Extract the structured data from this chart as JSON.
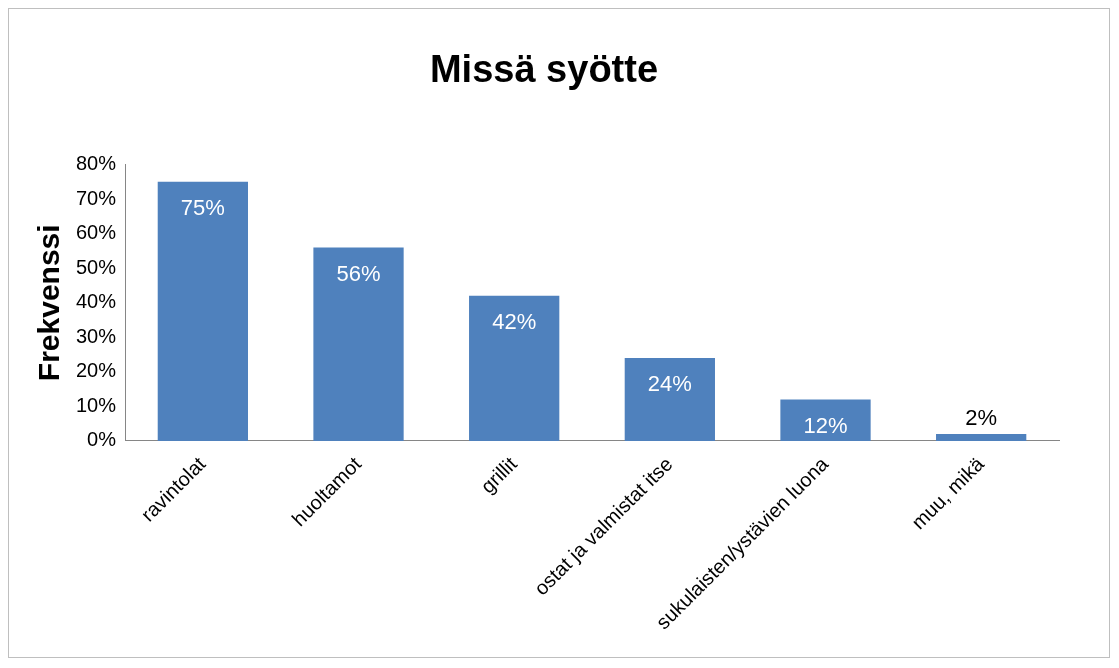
{
  "chart_data": {
    "type": "bar",
    "title": "Missä syötte",
    "ylabel": "Frekvenssi",
    "categories": [
      "ravintolat",
      "huoltamot",
      "grillit",
      "ostat ja valmistat itse",
      "sukulaisten/ystävien luona",
      "muu, mikä"
    ],
    "values": [
      75,
      56,
      42,
      24,
      12,
      2
    ],
    "color": "#4f81bd",
    "value_labels": [
      "75%",
      "56%",
      "42%",
      "24%",
      "12%",
      "2%"
    ],
    "ylim": [
      0,
      80
    ],
    "yticks": [
      {
        "value": 0,
        "label": "0%"
      },
      {
        "value": 10,
        "label": "10%"
      },
      {
        "value": 20,
        "label": "20%"
      },
      {
        "value": 30,
        "label": "30%"
      },
      {
        "value": 40,
        "label": "40%"
      },
      {
        "value": 50,
        "label": "50%"
      },
      {
        "value": 60,
        "label": "60%"
      },
      {
        "value": 70,
        "label": "70%"
      },
      {
        "value": 80,
        "label": "80%"
      }
    ],
    "grid": false,
    "legend": false
  }
}
